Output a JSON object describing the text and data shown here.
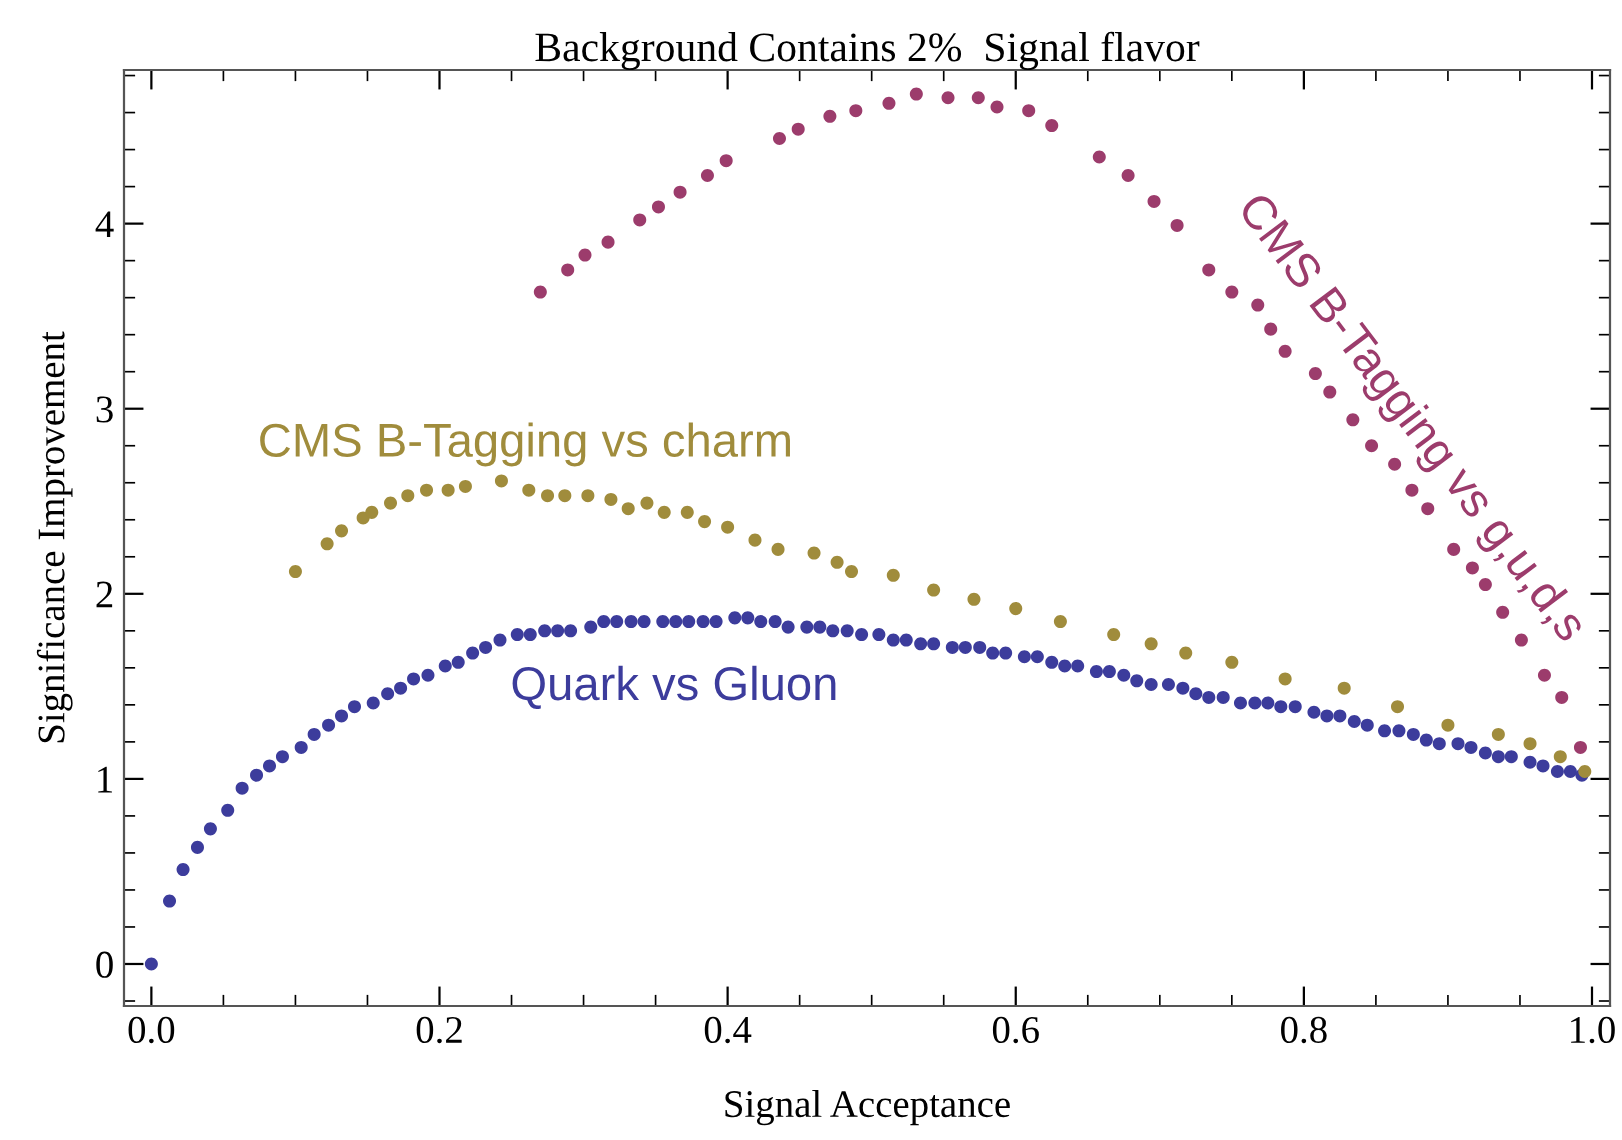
{
  "chart_data": {
    "type": "scatter",
    "title": "Background Contains 2%  Signal flavor",
    "xlabel": "Signal Acceptance",
    "ylabel": "Significance Improvement",
    "xlim": [
      -0.019,
      1.0125
    ],
    "ylim": [
      -0.227,
      4.83
    ],
    "xticks": [
      {
        "value": 0,
        "label": "0.0"
      },
      0.2,
      0.4,
      0.6,
      0.8,
      {
        "value": 1,
        "label": "1.0"
      }
    ],
    "yticks": [
      0,
      1,
      2,
      3,
      4
    ],
    "grid": false,
    "legend": false,
    "marker": "circle",
    "series": [
      {
        "name": "Quark vs Gluon",
        "color": "#3c3c9c",
        "x": [
          0,
          0.0126,
          0.022,
          0.032,
          0.041,
          0.053,
          0.063,
          0.073,
          0.082,
          0.091,
          0.104,
          0.113,
          0.123,
          0.132,
          0.141,
          0.154,
          0.164,
          0.173,
          0.182,
          0.192,
          0.204,
          0.213,
          0.223,
          0.232,
          0.242,
          0.254,
          0.263,
          0.273,
          0.282,
          0.291,
          0.305,
          0.314,
          0.323,
          0.333,
          0.342,
          0.355,
          0.364,
          0.373,
          0.383,
          0.392,
          0.405,
          0.414,
          0.423,
          0.433,
          0.442,
          0.455,
          0.464,
          0.473,
          0.483,
          0.493,
          0.505,
          0.515,
          0.524,
          0.534,
          0.543,
          0.556,
          0.565,
          0.575,
          0.584,
          0.593,
          0.606,
          0.615,
          0.625,
          0.634,
          0.643,
          0.656,
          0.665,
          0.675,
          0.684,
          0.694,
          0.706,
          0.716,
          0.725,
          0.734,
          0.744,
          0.756,
          0.766,
          0.775,
          0.784,
          0.794,
          0.807,
          0.816,
          0.825,
          0.835,
          0.844,
          0.856,
          0.866,
          0.876,
          0.885,
          0.894,
          0.907,
          0.916,
          0.926,
          0.935,
          0.944,
          0.957,
          0.966,
          0.976,
          0.985,
          0.993
        ],
        "values": [
          0,
          0.34,
          0.51,
          0.63,
          0.73,
          0.83,
          0.95,
          1.02,
          1.07,
          1.12,
          1.17,
          1.24,
          1.29,
          1.34,
          1.39,
          1.41,
          1.46,
          1.49,
          1.54,
          1.56,
          1.61,
          1.63,
          1.68,
          1.71,
          1.75,
          1.78,
          1.78,
          1.8,
          1.8,
          1.8,
          1.82,
          1.85,
          1.85,
          1.85,
          1.85,
          1.85,
          1.85,
          1.85,
          1.85,
          1.85,
          1.87,
          1.87,
          1.85,
          1.85,
          1.82,
          1.82,
          1.82,
          1.8,
          1.8,
          1.78,
          1.78,
          1.75,
          1.75,
          1.73,
          1.73,
          1.71,
          1.71,
          1.71,
          1.68,
          1.68,
          1.66,
          1.66,
          1.63,
          1.61,
          1.61,
          1.58,
          1.58,
          1.56,
          1.53,
          1.51,
          1.51,
          1.49,
          1.46,
          1.44,
          1.44,
          1.41,
          1.41,
          1.41,
          1.39,
          1.39,
          1.36,
          1.34,
          1.34,
          1.31,
          1.29,
          1.26,
          1.26,
          1.24,
          1.21,
          1.19,
          1.19,
          1.17,
          1.14,
          1.12,
          1.12,
          1.09,
          1.07,
          1.04,
          1.04,
          1.02
        ]
      },
      {
        "name": "CMS B-Tagging vs charm",
        "color": "#a08c3c",
        "x": [
          0.1,
          0.122,
          0.132,
          0.147,
          0.153,
          0.166,
          0.178,
          0.191,
          0.206,
          0.218,
          0.243,
          0.262,
          0.275,
          0.287,
          0.303,
          0.319,
          0.331,
          0.344,
          0.356,
          0.372,
          0.384,
          0.4,
          0.419,
          0.435,
          0.46,
          0.476,
          0.486,
          0.515,
          0.543,
          0.571,
          0.6,
          0.631,
          0.668,
          0.694,
          0.718,
          0.75,
          0.787,
          0.828,
          0.865,
          0.9,
          0.935,
          0.957,
          0.978,
          0.995
        ],
        "values": [
          2.12,
          2.27,
          2.34,
          2.41,
          2.44,
          2.49,
          2.53,
          2.56,
          2.56,
          2.58,
          2.61,
          2.56,
          2.53,
          2.53,
          2.53,
          2.51,
          2.46,
          2.49,
          2.44,
          2.44,
          2.39,
          2.36,
          2.29,
          2.24,
          2.22,
          2.17,
          2.12,
          2.1,
          2.02,
          1.97,
          1.92,
          1.85,
          1.78,
          1.73,
          1.68,
          1.63,
          1.54,
          1.49,
          1.39,
          1.29,
          1.24,
          1.19,
          1.12,
          1.04
        ]
      },
      {
        "name": "CMS B-Tagging vs g,u,d,s",
        "color": "#9c3c6c",
        "x": [
          0.27,
          0.289,
          0.301,
          0.317,
          0.339,
          0.352,
          0.367,
          0.386,
          0.399,
          0.436,
          0.449,
          0.471,
          0.489,
          0.512,
          0.531,
          0.553,
          0.574,
          0.587,
          0.609,
          0.625,
          0.658,
          0.678,
          0.696,
          0.712,
          0.734,
          0.75,
          0.768,
          0.777,
          0.787,
          0.808,
          0.818,
          0.834,
          0.847,
          0.863,
          0.875,
          0.886,
          0.904,
          0.917,
          0.926,
          0.938,
          0.951,
          0.967,
          0.979,
          0.992
        ],
        "values": [
          3.63,
          3.75,
          3.83,
          3.9,
          4.02,
          4.09,
          4.17,
          4.26,
          4.34,
          4.46,
          4.51,
          4.58,
          4.61,
          4.65,
          4.7,
          4.68,
          4.68,
          4.63,
          4.61,
          4.53,
          4.36,
          4.26,
          4.12,
          3.99,
          3.75,
          3.63,
          3.56,
          3.43,
          3.31,
          3.19,
          3.09,
          2.94,
          2.8,
          2.7,
          2.56,
          2.46,
          2.24,
          2.14,
          2.05,
          1.9,
          1.75,
          1.56,
          1.44,
          1.17
        ]
      }
    ]
  }
}
